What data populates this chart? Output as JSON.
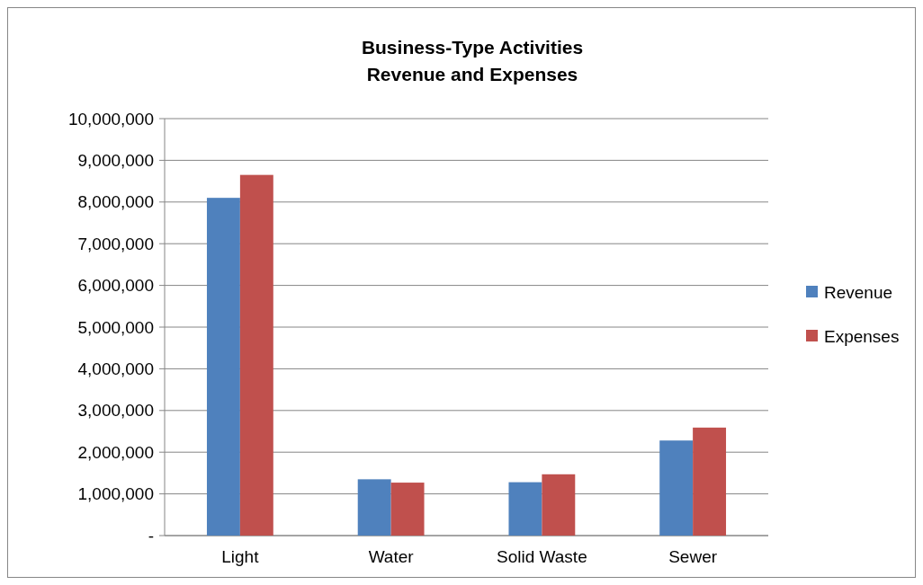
{
  "chart_data": {
    "type": "bar",
    "title": "Business-Type Activities\nRevenue and Expenses",
    "categories": [
      "Light",
      "Water",
      "Solid Waste",
      "Sewer"
    ],
    "series": [
      {
        "name": "Revenue",
        "color": "#4f81bd",
        "values": [
          8100000,
          1350000,
          1280000,
          2280000
        ]
      },
      {
        "name": "Expenses",
        "color": "#c0504d",
        "values": [
          8650000,
          1270000,
          1470000,
          2590000
        ]
      }
    ],
    "ylim": [
      0,
      10000000
    ],
    "yticks": [
      {
        "value": 0,
        "label": "-"
      },
      {
        "value": 1000000,
        "label": "1,000,000"
      },
      {
        "value": 2000000,
        "label": "2,000,000"
      },
      {
        "value": 3000000,
        "label": "3,000,000"
      },
      {
        "value": 4000000,
        "label": "4,000,000"
      },
      {
        "value": 5000000,
        "label": "5,000,000"
      },
      {
        "value": 6000000,
        "label": "6,000,000"
      },
      {
        "value": 7000000,
        "label": "7,000,000"
      },
      {
        "value": 8000000,
        "label": "8,000,000"
      },
      {
        "value": 9000000,
        "label": "9,000,000"
      },
      {
        "value": 10000000,
        "label": "10,000,000"
      }
    ],
    "grid": "y",
    "legend": "right"
  }
}
